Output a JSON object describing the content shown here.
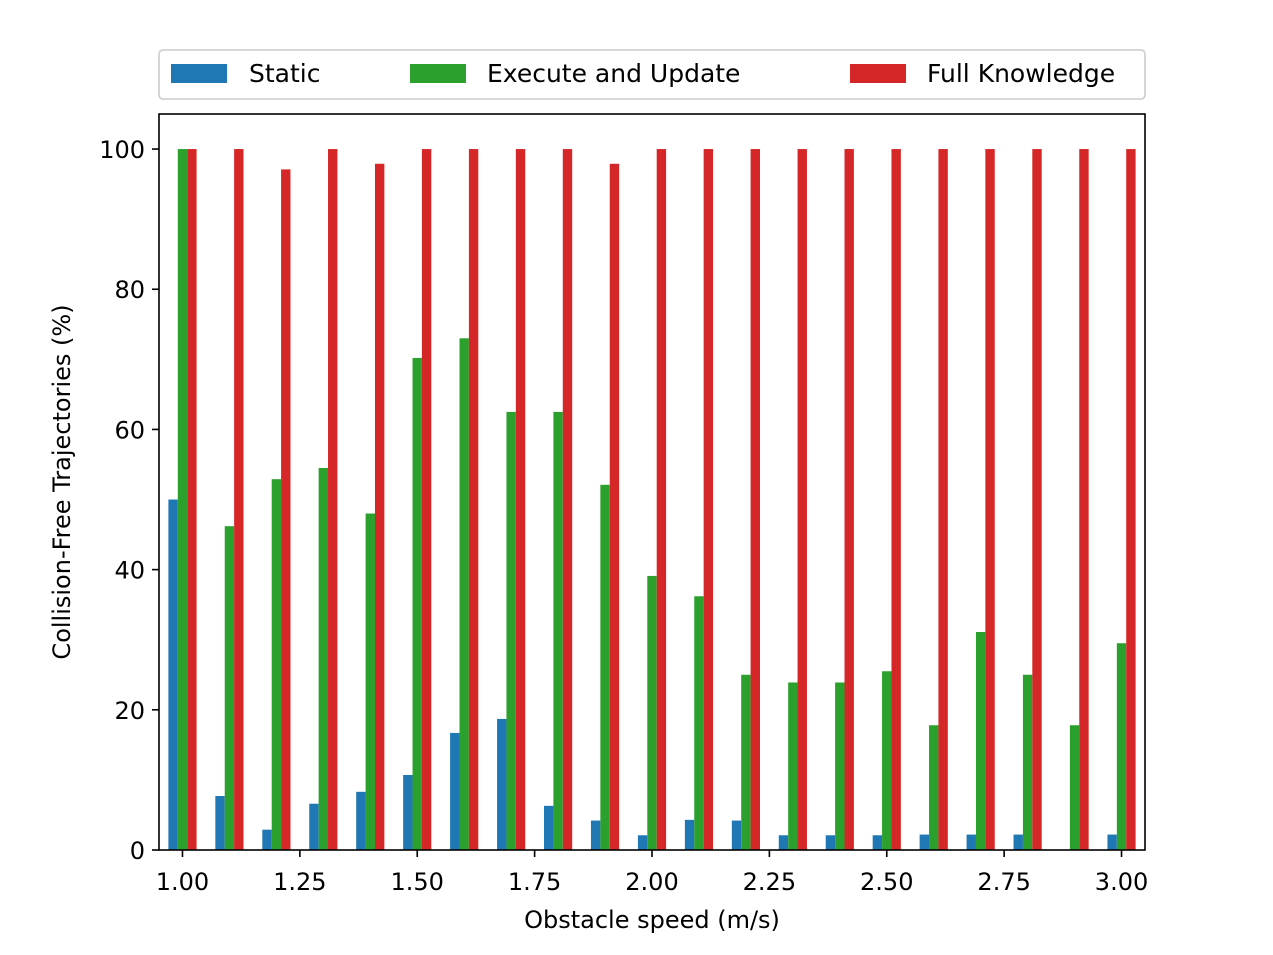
{
  "chart_data": {
    "type": "bar",
    "xlabel": "Obstacle speed (m/s)",
    "ylabel": "Collision-Free Trajectories (%)",
    "x": [
      1.0,
      1.1,
      1.2,
      1.3,
      1.4,
      1.5,
      1.6,
      1.7,
      1.8,
      1.9,
      2.0,
      2.1,
      2.2,
      2.3,
      2.4,
      2.5,
      2.6,
      2.7,
      2.8,
      2.9,
      3.0
    ],
    "xlim": [
      0.95,
      3.05
    ],
    "ylim": [
      0,
      105
    ],
    "xticks": [
      1.0,
      1.25,
      1.5,
      1.75,
      2.0,
      2.25,
      2.5,
      2.75,
      3.0
    ],
    "xtick_labels": [
      "1.00",
      "1.25",
      "1.50",
      "1.75",
      "2.00",
      "2.25",
      "2.50",
      "2.75",
      "3.00"
    ],
    "yticks": [
      0,
      20,
      40,
      60,
      80,
      100
    ],
    "ytick_labels": [
      "0",
      "20",
      "40",
      "60",
      "80",
      "100"
    ],
    "grid": false,
    "legend_position": "top",
    "series": [
      {
        "name": "Static",
        "color": "#1f77b4",
        "values": [
          50,
          7.7,
          2.9,
          6.6,
          8.3,
          10.7,
          16.7,
          18.7,
          6.3,
          4.2,
          2.1,
          4.3,
          4.2,
          2.1,
          2.1,
          2.1,
          2.2,
          2.2,
          2.2,
          0,
          2.2
        ]
      },
      {
        "name": "Execute and Update",
        "color": "#2ca02c",
        "values": [
          100,
          46.2,
          52.9,
          54.5,
          48,
          70.2,
          73,
          62.5,
          62.5,
          52.1,
          39.1,
          36.2,
          25,
          23.9,
          23.9,
          25.5,
          17.8,
          31.1,
          25,
          17.8,
          29.5
        ]
      },
      {
        "name": "Full Knowledge",
        "color": "#d62728",
        "values": [
          100,
          100,
          97.1,
          100,
          97.9,
          100,
          100,
          100,
          100,
          97.9,
          100,
          100,
          100,
          100,
          100,
          100,
          100,
          100,
          100,
          100,
          100
        ]
      }
    ]
  }
}
